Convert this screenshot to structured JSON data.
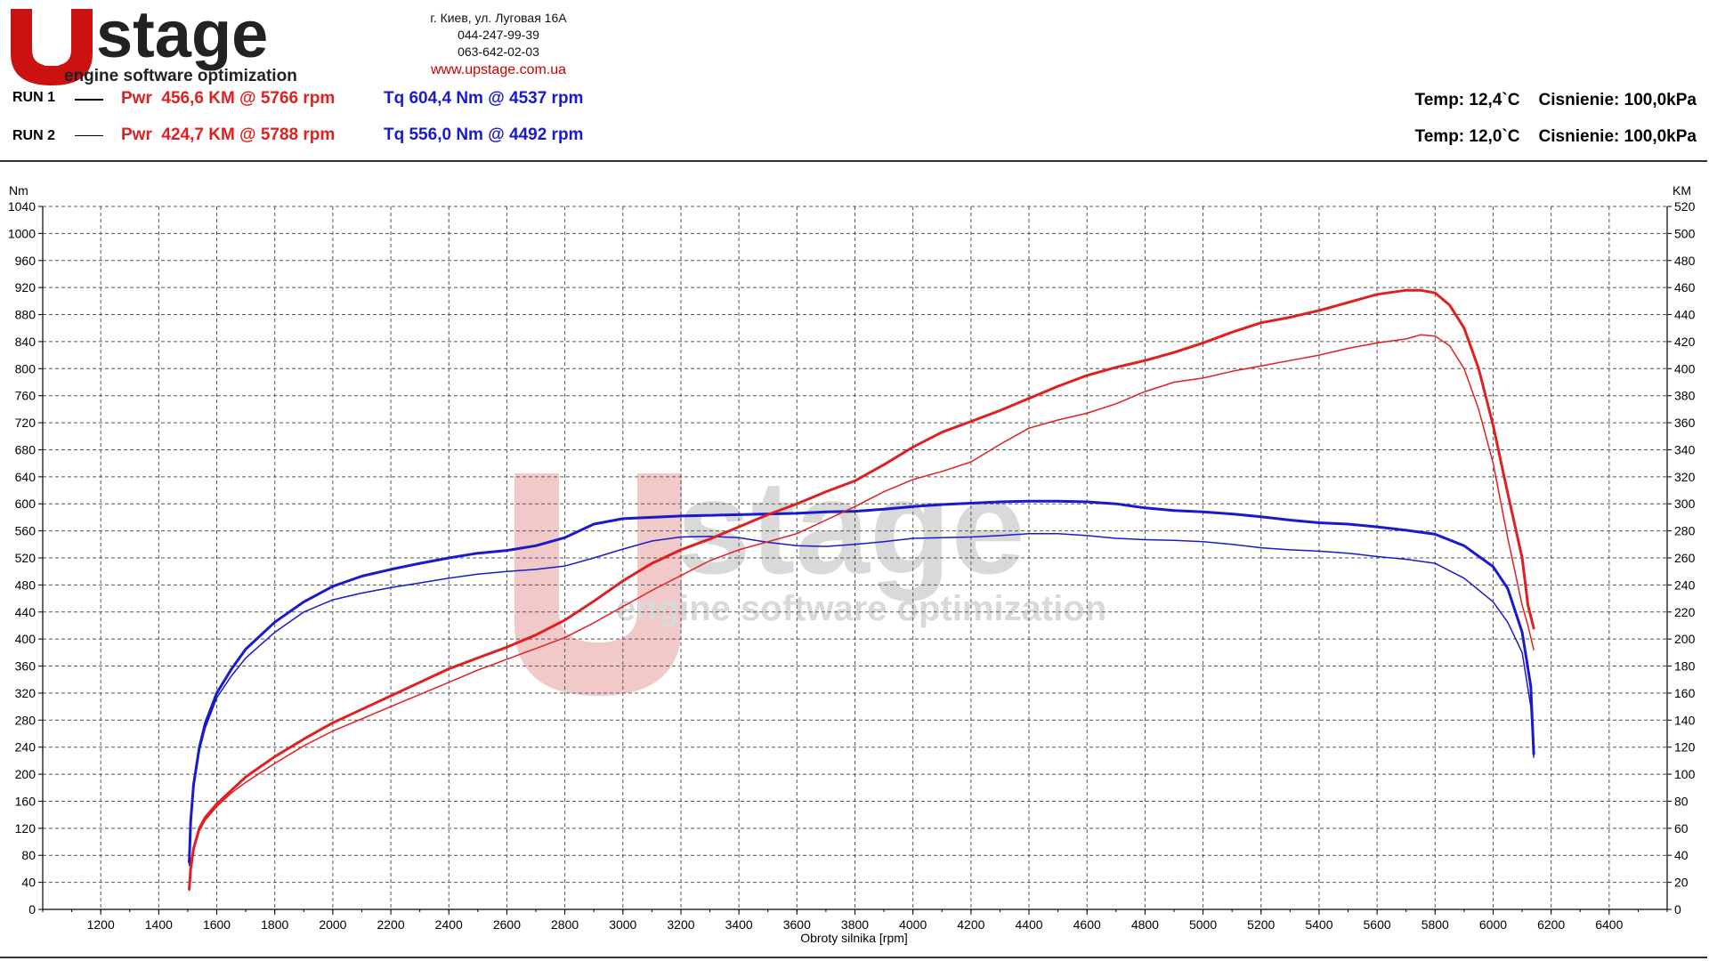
{
  "header": {
    "logo_text_main": "stage",
    "logo_text_sub": "engine software optimization",
    "address": "г. Киев, ул. Луговая 16А",
    "phone1": "044-247-99-39",
    "phone2": "063-642-02-03",
    "website": "www.upstage.com.ua"
  },
  "runs": [
    {
      "label": "RUN 1",
      "pwr": "Pwr  456,6 KM @ 5766 rpm",
      "tq": "Tq 604,4 Nm @ 4537 rpm",
      "conditions": "Temp: 12,4`C    Cisnienie: 100,0kPa"
    },
    {
      "label": "RUN 2",
      "pwr": "Pwr  424,7 KM @ 5788 rpm",
      "tq": "Tq 556,0 Nm @ 4492 rpm",
      "conditions": "Temp: 12,0`C    Cisnienie: 100,0kPa"
    }
  ],
  "colors": {
    "power": "#e02020",
    "torque": "#1a1acc",
    "watermark_red": "#f2c9c9",
    "watermark_gray": "#d9d9d9"
  },
  "chart_data": {
    "type": "line",
    "xlabel": "Obroty silnika [rpm]",
    "ylabel_left": "Nm",
    "ylabel_right": "KM",
    "xlim": [
      1000,
      6600
    ],
    "x_ticks": [
      1200,
      1400,
      1600,
      1800,
      2000,
      2200,
      2400,
      2600,
      2800,
      3000,
      3200,
      3400,
      3600,
      3800,
      4000,
      4200,
      4400,
      4600,
      4800,
      5000,
      5200,
      5400,
      5600,
      5800,
      6000,
      6200,
      6400
    ],
    "ylim_left": [
      0,
      1040
    ],
    "y_ticks_left": [
      0,
      40,
      80,
      120,
      160,
      200,
      240,
      280,
      320,
      360,
      400,
      440,
      480,
      520,
      560,
      600,
      640,
      680,
      720,
      760,
      800,
      840,
      880,
      920,
      960,
      1000,
      1040
    ],
    "ylim_right": [
      0,
      520
    ],
    "y_ticks_right": [
      0,
      20,
      40,
      60,
      80,
      100,
      120,
      140,
      160,
      180,
      200,
      220,
      240,
      260,
      280,
      300,
      320,
      340,
      360,
      380,
      400,
      420,
      440,
      460,
      480,
      500,
      520
    ],
    "grid": true,
    "series": [
      {
        "name": "Tq RUN 1",
        "axis": "left",
        "color": "#1a1acc",
        "width": 3,
        "x": [
          1505,
          1510,
          1520,
          1540,
          1560,
          1600,
          1650,
          1700,
          1800,
          1900,
          2000,
          2100,
          2200,
          2300,
          2400,
          2500,
          2600,
          2700,
          2800,
          2900,
          3000,
          3100,
          3200,
          3300,
          3400,
          3500,
          3600,
          3700,
          3800,
          3900,
          4000,
          4100,
          4200,
          4300,
          4400,
          4500,
          4600,
          4700,
          4800,
          4900,
          5000,
          5100,
          5200,
          5300,
          5400,
          5500,
          5600,
          5700,
          5800,
          5900,
          6000,
          6050,
          6100,
          6130,
          6140
        ],
        "y": [
          70,
          130,
          185,
          240,
          275,
          320,
          355,
          385,
          425,
          455,
          478,
          493,
          503,
          512,
          520,
          527,
          531,
          538,
          550,
          570,
          578,
          580,
          582,
          583,
          584,
          585,
          586,
          588,
          589,
          592,
          596,
          599,
          601,
          603,
          604,
          604,
          603,
          600,
          594,
          590,
          588,
          585,
          581,
          576,
          572,
          570,
          566,
          561,
          555,
          538,
          507,
          475,
          410,
          330,
          230
        ]
      },
      {
        "name": "Tq RUN 2",
        "axis": "left",
        "color": "#1a1acc",
        "width": 1.5,
        "x": [
          1505,
          1510,
          1520,
          1540,
          1560,
          1600,
          1650,
          1700,
          1800,
          1900,
          2000,
          2100,
          2200,
          2300,
          2400,
          2500,
          2600,
          2700,
          2800,
          2900,
          3000,
          3100,
          3200,
          3300,
          3400,
          3500,
          3600,
          3700,
          3800,
          3900,
          4000,
          4100,
          4200,
          4300,
          4400,
          4500,
          4600,
          4700,
          4800,
          4900,
          5000,
          5100,
          5200,
          5300,
          5400,
          5500,
          5600,
          5700,
          5800,
          5900,
          6000,
          6050,
          6100,
          6130,
          6140
        ],
        "y": [
          65,
          125,
          180,
          235,
          268,
          313,
          345,
          372,
          410,
          440,
          458,
          468,
          476,
          483,
          490,
          496,
          500,
          503,
          508,
          520,
          533,
          545,
          551,
          552,
          550,
          543,
          538,
          537,
          540,
          544,
          549,
          550,
          551,
          553,
          556,
          556,
          553,
          549,
          547,
          546,
          544,
          540,
          535,
          532,
          530,
          527,
          522,
          518,
          512,
          490,
          455,
          425,
          380,
          300,
          225
        ]
      },
      {
        "name": "Pwr RUN 1",
        "axis": "right",
        "color": "#e02020",
        "width": 3,
        "x": [
          1505,
          1510,
          1520,
          1540,
          1560,
          1600,
          1650,
          1700,
          1800,
          1900,
          2000,
          2100,
          2200,
          2300,
          2400,
          2500,
          2600,
          2700,
          2800,
          2900,
          3000,
          3100,
          3200,
          3300,
          3400,
          3500,
          3600,
          3700,
          3800,
          3900,
          4000,
          4100,
          4200,
          4300,
          4400,
          4500,
          4600,
          4700,
          4800,
          4900,
          5000,
          5100,
          5200,
          5300,
          5400,
          5500,
          5600,
          5700,
          5750,
          5800,
          5850,
          5900,
          5950,
          6000,
          6050,
          6100,
          6120,
          6140
        ],
        "y": [
          15,
          30,
          45,
          60,
          68,
          78,
          88,
          98,
          113,
          126,
          138,
          148,
          158,
          168,
          178,
          186,
          194,
          203,
          214,
          228,
          243,
          256,
          266,
          274,
          283,
          292,
          300,
          309,
          317,
          329,
          342,
          353,
          361,
          369,
          378,
          387,
          395,
          401,
          406,
          412,
          419,
          427,
          434,
          438,
          443,
          449,
          455,
          458,
          458,
          456,
          447,
          430,
          400,
          358,
          308,
          260,
          225,
          208
        ]
      },
      {
        "name": "Pwr RUN 2",
        "axis": "right",
        "color": "#e02020",
        "width": 1.5,
        "x": [
          1505,
          1510,
          1520,
          1540,
          1560,
          1600,
          1650,
          1700,
          1800,
          1900,
          2000,
          2100,
          2200,
          2300,
          2400,
          2500,
          2600,
          2700,
          2800,
          2900,
          3000,
          3100,
          3200,
          3300,
          3400,
          3500,
          3600,
          3700,
          3800,
          3900,
          4000,
          4100,
          4200,
          4300,
          4400,
          4500,
          4600,
          4700,
          4800,
          4900,
          5000,
          5100,
          5200,
          5300,
          5400,
          5500,
          5600,
          5700,
          5750,
          5800,
          5850,
          5900,
          5950,
          6000,
          6050,
          6100,
          6120,
          6140
        ],
        "y": [
          14,
          28,
          44,
          58,
          66,
          76,
          86,
          94,
          108,
          121,
          132,
          141,
          150,
          159,
          168,
          177,
          185,
          193,
          201,
          212,
          224,
          236,
          247,
          258,
          266,
          272,
          278,
          288,
          298,
          309,
          318,
          324,
          331,
          344,
          356,
          362,
          367,
          374,
          383,
          390,
          393,
          398,
          402,
          406,
          410,
          415,
          419,
          422,
          425,
          424,
          417,
          400,
          370,
          330,
          275,
          225,
          210,
          192
        ]
      }
    ]
  }
}
